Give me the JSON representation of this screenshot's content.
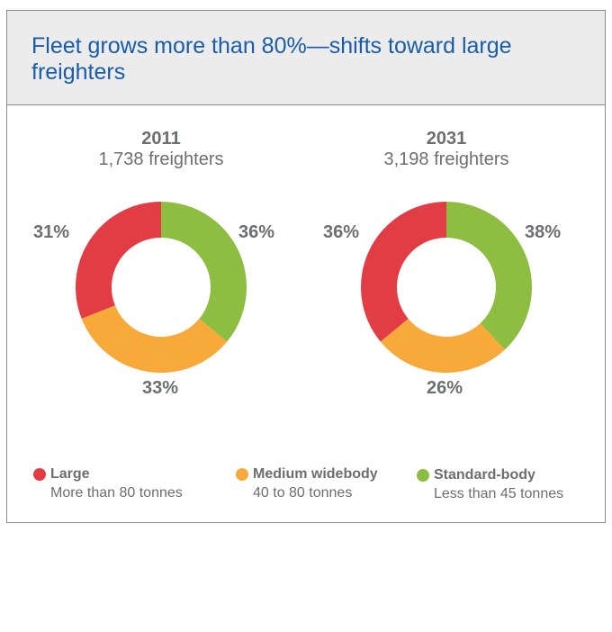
{
  "title": "Fleet grows more than 80%—shifts toward large freighters",
  "chart_data": {
    "type": "pie",
    "style": "donut",
    "colors": {
      "Large": "#e23d45",
      "Medium widebody": "#f7a93a",
      "Standard-body": "#8dbe41"
    },
    "charts": [
      {
        "year": "2011",
        "count": "1,738 freighters",
        "slices": [
          {
            "name": "Standard-body",
            "value": 36,
            "label": "36%"
          },
          {
            "name": "Medium widebody",
            "value": 33,
            "label": "33%"
          },
          {
            "name": "Large",
            "value": 31,
            "label": "31%"
          }
        ]
      },
      {
        "year": "2031",
        "count": "3,198 freighters",
        "slices": [
          {
            "name": "Standard-body",
            "value": 38,
            "label": "38%"
          },
          {
            "name": "Medium widebody",
            "value": 26,
            "label": "26%"
          },
          {
            "name": "Large",
            "value": 36,
            "label": "36%"
          }
        ]
      }
    ],
    "legend": [
      {
        "name": "Large",
        "desc": "More than 80 tonnes",
        "color": "#e23d45"
      },
      {
        "name": "Medium widebody",
        "desc": "40 to 80 tonnes",
        "color": "#f7a93a"
      },
      {
        "name": "Standard-body",
        "desc": "Less than 45 tonnes",
        "color": "#8dbe41"
      }
    ],
    "legend_position": "bottom"
  }
}
